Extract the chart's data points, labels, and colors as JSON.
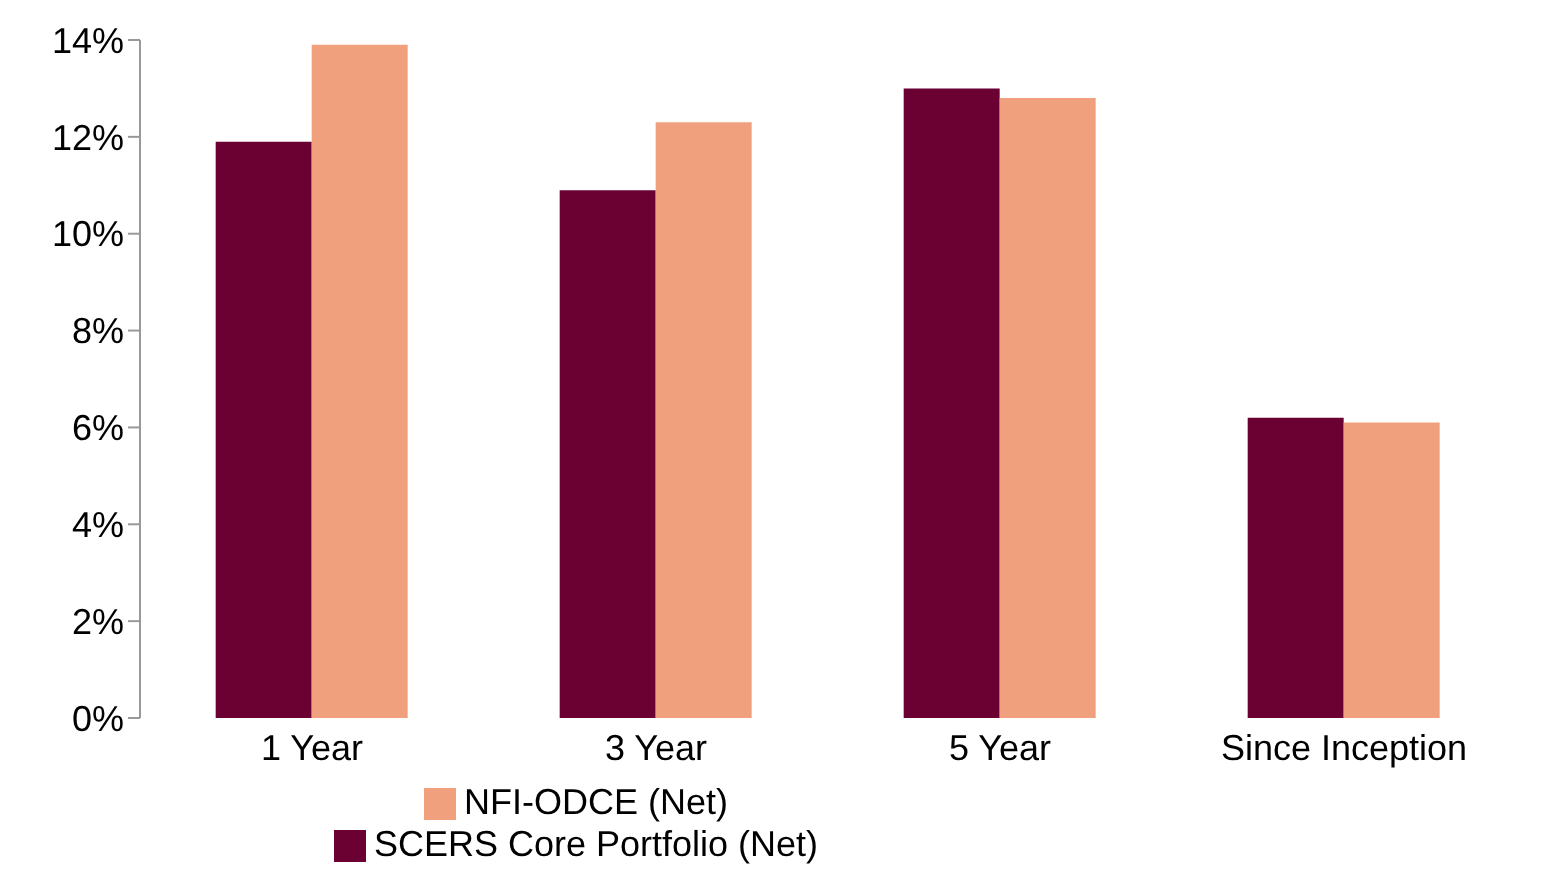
{
  "chart_data": {
    "type": "bar",
    "categories": [
      "1 Year",
      "3 Year",
      "5 Year",
      "Since Inception"
    ],
    "series": [
      {
        "name": "SCERS Core Portfolio (Net)",
        "color": "#6b0032",
        "values": [
          11.9,
          10.9,
          13.0,
          6.2
        ]
      },
      {
        "name": "NFI-ODCE (Net)",
        "color": "#f0a07c",
        "values": [
          13.9,
          12.3,
          12.8,
          6.1
        ]
      }
    ],
    "ylim": [
      0,
      14
    ],
    "yticks": [
      {
        "value": 0,
        "label": "0%"
      },
      {
        "value": 2,
        "label": "2%"
      },
      {
        "value": 4,
        "label": "4%"
      },
      {
        "value": 6,
        "label": "6%"
      },
      {
        "value": 8,
        "label": "8%"
      },
      {
        "value": 10,
        "label": "10%"
      },
      {
        "value": 12,
        "label": "12%"
      },
      {
        "value": 14,
        "label": "14%"
      }
    ],
    "grid": false,
    "legend": "bottom"
  }
}
